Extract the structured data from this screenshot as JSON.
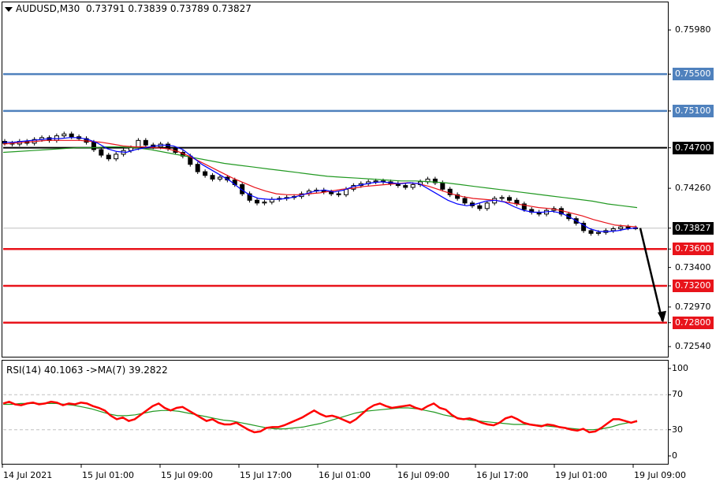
{
  "header": {
    "symbol": "AUDUSD,M30",
    "ohlc": "0.73791 0.73839 0.73789 0.73827"
  },
  "rsi_header": {
    "label": "RSI(14) 40.1063  ->MA(7) 39.2822"
  },
  "colors": {
    "resistance": "#4f81bd",
    "support": "#e8141b",
    "pivot": "#000000",
    "ma_fast": "#0000ff",
    "ma_mid": "#e8141b",
    "ma_slow": "#229922",
    "rsi": "#ff0000",
    "rsi_ma": "#229922",
    "current_line": "#c0c0c0"
  },
  "chart_data": [
    {
      "type": "line",
      "title": "AUDUSD,M30",
      "ylim": [
        0.7243,
        0.7628
      ],
      "y_ticks": [
        "0.75980",
        "0.75500",
        "0.75100",
        "0.74700",
        "0.74260",
        "0.73827",
        "0.73600",
        "0.73400",
        "0.73200",
        "0.72970",
        "0.72800",
        "0.72540"
      ],
      "x_ticks": [
        "14 Jul 2021",
        "15 Jul 01:00",
        "15 Jul 09:00",
        "15 Jul 17:00",
        "16 Jul 01:00",
        "16 Jul 09:00",
        "16 Jul 17:00",
        "19 Jul 01:00",
        "19 Jul 09:00"
      ],
      "levels": [
        {
          "value": 0.755,
          "label": "0.75500",
          "kind": "resistance"
        },
        {
          "value": 0.751,
          "label": "0.75100",
          "kind": "resistance"
        },
        {
          "value": 0.747,
          "label": "0.74700",
          "kind": "pivot"
        },
        {
          "value": 0.73827,
          "label": "0.73827",
          "kind": "current"
        },
        {
          "value": 0.736,
          "label": "0.73600",
          "kind": "support"
        },
        {
          "value": 0.732,
          "label": "0.73200",
          "kind": "support"
        },
        {
          "value": 0.728,
          "label": "0.72800",
          "kind": "support"
        }
      ],
      "close_series": [
        0.7475,
        0.7474,
        0.7477,
        0.7475,
        0.7479,
        0.7481,
        0.7478,
        0.7483,
        0.7485,
        0.7482,
        0.748,
        0.7476,
        0.7468,
        0.7462,
        0.7458,
        0.7463,
        0.7467,
        0.747,
        0.7478,
        0.7473,
        0.7471,
        0.7474,
        0.7469,
        0.7465,
        0.7461,
        0.7452,
        0.7444,
        0.744,
        0.7436,
        0.7438,
        0.7435,
        0.743,
        0.742,
        0.7413,
        0.741,
        0.7411,
        0.7414,
        0.7415,
        0.7416,
        0.7417,
        0.742,
        0.7423,
        0.7424,
        0.7422,
        0.742,
        0.7419,
        0.7425,
        0.7429,
        0.7431,
        0.7433,
        0.7434,
        0.7433,
        0.7431,
        0.7429,
        0.7427,
        0.743,
        0.7433,
        0.7436,
        0.7432,
        0.7425,
        0.7419,
        0.7415,
        0.741,
        0.7407,
        0.7404,
        0.741,
        0.7415,
        0.7416,
        0.7413,
        0.7409,
        0.7403,
        0.74,
        0.7398,
        0.7402,
        0.7404,
        0.7398,
        0.7393,
        0.7388,
        0.738,
        0.7377,
        0.7378,
        0.738,
        0.7382,
        0.7384,
        0.7383,
        0.7383
      ],
      "ma_fast": [
        0.7476,
        0.7476,
        0.7477,
        0.7478,
        0.7479,
        0.748,
        0.748,
        0.7481,
        0.7481,
        0.7479,
        0.7475,
        0.7469,
        0.7466,
        0.7465,
        0.7468,
        0.747,
        0.7472,
        0.7473,
        0.7472,
        0.7468,
        0.746,
        0.7452,
        0.7446,
        0.744,
        0.7434,
        0.7426,
        0.7419,
        0.7415,
        0.7414,
        0.7414,
        0.7415,
        0.7417,
        0.742,
        0.7423,
        0.7424,
        0.7422,
        0.7424,
        0.7428,
        0.743,
        0.7432,
        0.7433,
        0.7432,
        0.7431,
        0.7432,
        0.7431,
        0.7425,
        0.7419,
        0.7413,
        0.7409,
        0.7407,
        0.7409,
        0.7412,
        0.7413,
        0.7411,
        0.7406,
        0.7402,
        0.74,
        0.74,
        0.7401,
        0.7399,
        0.7394,
        0.7388,
        0.7382,
        0.7379,
        0.7379,
        0.738,
        0.7382,
        0.7383
      ],
      "ma_mid": [
        0.7474,
        0.7475,
        0.7476,
        0.7477,
        0.7478,
        0.7478,
        0.7478,
        0.7478,
        0.7477,
        0.7476,
        0.7474,
        0.7472,
        0.7471,
        0.7471,
        0.747,
        0.7469,
        0.7466,
        0.7461,
        0.7455,
        0.7449,
        0.7443,
        0.7437,
        0.7432,
        0.7427,
        0.7423,
        0.742,
        0.7419,
        0.7419,
        0.742,
        0.7421,
        0.7423,
        0.7425,
        0.7426,
        0.7428,
        0.7429,
        0.743,
        0.7431,
        0.7432,
        0.7431,
        0.7428,
        0.7424,
        0.742,
        0.7417,
        0.7415,
        0.7414,
        0.7413,
        0.7411,
        0.7409,
        0.7407,
        0.7405,
        0.7404,
        0.7402,
        0.7399,
        0.7396,
        0.7392,
        0.7389,
        0.7386,
        0.7385,
        0.7384
      ],
      "ma_slow": [
        0.7465,
        0.7466,
        0.7467,
        0.7468,
        0.7469,
        0.747,
        0.747,
        0.7471,
        0.7471,
        0.747,
        0.7468,
        0.7465,
        0.7462,
        0.7459,
        0.7456,
        0.7453,
        0.7451,
        0.7449,
        0.7447,
        0.7445,
        0.7443,
        0.7441,
        0.7439,
        0.7438,
        0.7437,
        0.7436,
        0.7435,
        0.7434,
        0.7434,
        0.7433,
        0.7432,
        0.743,
        0.7428,
        0.7426,
        0.7424,
        0.7422,
        0.742,
        0.7418,
        0.7416,
        0.7414,
        0.7412,
        0.7409,
        0.7407,
        0.7405
      ],
      "projection": {
        "from": 0.73827,
        "to": 0.728
      }
    },
    {
      "type": "line",
      "title": "RSI(14) 40.1063  ->MA(7) 39.2822",
      "ylim": [
        0,
        100
      ],
      "y_ticks": [
        "100",
        "70",
        "30",
        "0"
      ],
      "levels": [
        70,
        30
      ],
      "rsi": [
        60,
        62,
        59,
        58,
        60,
        61,
        59,
        60,
        62,
        61,
        58,
        60,
        59,
        61,
        60,
        57,
        55,
        52,
        46,
        42,
        44,
        40,
        42,
        47,
        52,
        57,
        60,
        55,
        52,
        55,
        56,
        52,
        48,
        44,
        40,
        42,
        38,
        36,
        36,
        38,
        34,
        30,
        27,
        28,
        32,
        33,
        33,
        35,
        38,
        41,
        44,
        48,
        52,
        48,
        45,
        46,
        44,
        41,
        38,
        42,
        48,
        54,
        58,
        60,
        57,
        55,
        56,
        57,
        58,
        55,
        53,
        57,
        60,
        55,
        53,
        47,
        43,
        42,
        43,
        41,
        38,
        36,
        35,
        38,
        43,
        45,
        42,
        38,
        36,
        35,
        34,
        36,
        35,
        33,
        32,
        30,
        29,
        31,
        27,
        28,
        32,
        37,
        42,
        42,
        40,
        38,
        40
      ],
      "rsi_ma": [
        59,
        59,
        60,
        60,
        60,
        60,
        60,
        59,
        58,
        56,
        54,
        51,
        48,
        46,
        46,
        47,
        49,
        51,
        52,
        52,
        51,
        49,
        47,
        45,
        43,
        41,
        40,
        38,
        36,
        34,
        32,
        31,
        31,
        32,
        33,
        35,
        37,
        40,
        43,
        46,
        49,
        51,
        52,
        53,
        54,
        55,
        55,
        54,
        52,
        50,
        47,
        45,
        43,
        41,
        40,
        39,
        38,
        37,
        36,
        36,
        36,
        35,
        34,
        33,
        32,
        31,
        30,
        30,
        31,
        33,
        36,
        38,
        39
      ]
    }
  ]
}
